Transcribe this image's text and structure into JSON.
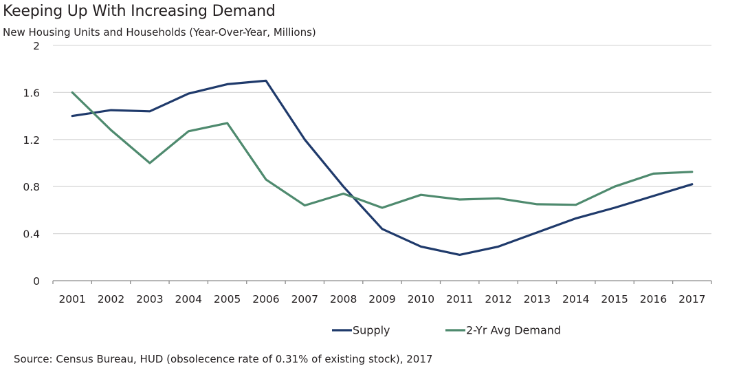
{
  "chart_data": {
    "type": "line",
    "title": "Keeping Up With Increasing Demand",
    "subtitle": "New Housing Units and Households (Year-Over-Year, Millions)",
    "xlabel": "",
    "ylabel": "",
    "categories": [
      "2001",
      "2002",
      "2003",
      "2004",
      "2005",
      "2006",
      "2007",
      "2008",
      "2009",
      "2010",
      "2011",
      "2012",
      "2013",
      "2014",
      "2015",
      "2016",
      "2017"
    ],
    "ylim": [
      0,
      2
    ],
    "yticks": [
      0,
      0.4,
      0.8,
      1.2,
      1.6,
      2
    ],
    "ytick_labels": [
      "0",
      "0.4",
      "0.8",
      "1.2",
      "1.6",
      "2"
    ],
    "grid": true,
    "legend_position": "bottom",
    "series": [
      {
        "name": "Supply",
        "color": "#1f3a6b",
        "values": [
          1.4,
          1.45,
          1.44,
          1.59,
          1.67,
          1.7,
          1.2,
          0.8,
          0.44,
          0.29,
          0.22,
          0.29,
          0.41,
          0.53,
          0.62,
          0.72,
          0.82
        ]
      },
      {
        "name": "2-Yr Avg Demand",
        "color": "#4e8a6e",
        "values": [
          1.6,
          1.28,
          1.0,
          1.27,
          1.34,
          0.86,
          0.64,
          0.74,
          0.62,
          0.73,
          0.69,
          0.7,
          0.65,
          0.645,
          0.8,
          0.91,
          0.925
        ]
      }
    ],
    "source": "Source: Census  Bureau, HUD (obsolecence rate of 0.31% of existing stock), 2017"
  }
}
